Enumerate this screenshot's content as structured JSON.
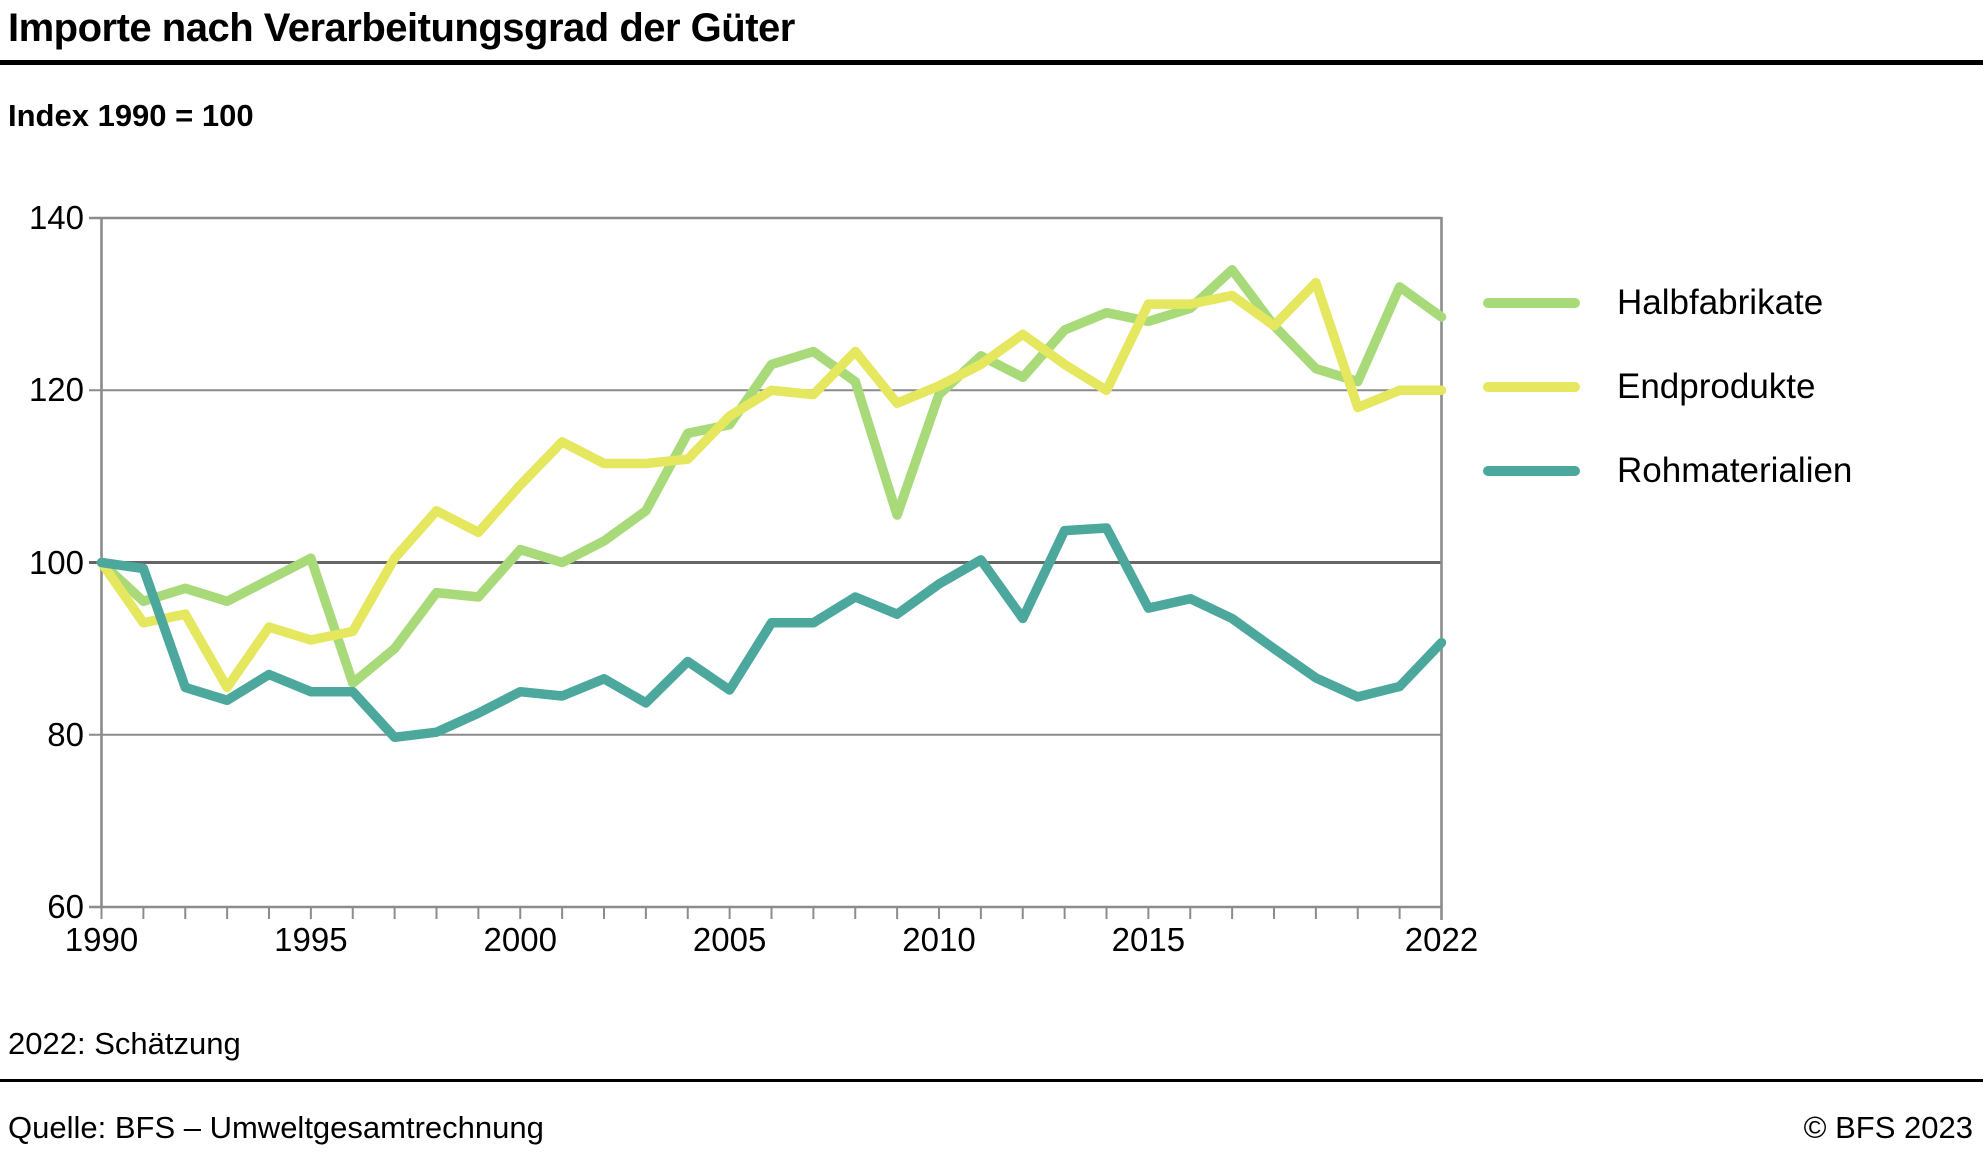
{
  "title": "Importe nach Verarbeitungsgrad der Güter",
  "subtitle": "Index 1990 = 100",
  "footnote": "2022: Schätzung",
  "source": "Quelle: BFS – Umweltgesamtrechnung",
  "copyright": "© BFS 2023",
  "colors": {
    "halbfabrikate": "#a9da79",
    "endprodukte": "#e5e75f",
    "rohmaterialien": "#4ca89c",
    "grid": "#8c8c8c",
    "grid_strong": "#666666",
    "text": "#000000"
  },
  "chart_data": {
    "type": "line",
    "title": "Importe nach Verarbeitungsgrad der Güter",
    "subtitle": "Index 1990 = 100",
    "xlabel": "",
    "ylabel": "Index 1990 = 100",
    "xlim": [
      1990,
      2022
    ],
    "ylim": [
      60,
      140
    ],
    "yticks": [
      140,
      120,
      100,
      80,
      60
    ],
    "xtick_labels": [
      1990,
      1995,
      2000,
      2005,
      2010,
      2015,
      2022
    ],
    "grid": "horizontal",
    "baseline_value": 100,
    "legend_position": "right",
    "x": [
      1990,
      1991,
      1992,
      1993,
      1994,
      1995,
      1996,
      1997,
      1998,
      1999,
      2000,
      2001,
      2002,
      2003,
      2004,
      2005,
      2006,
      2007,
      2008,
      2009,
      2010,
      2011,
      2012,
      2013,
      2014,
      2015,
      2016,
      2017,
      2018,
      2019,
      2020,
      2021,
      2022
    ],
    "series": [
      {
        "name": "Halbfabrikate",
        "color": "#a9da79",
        "values": [
          100,
          95.5,
          97,
          95.5,
          98,
          100.5,
          86,
          90,
          96.5,
          96,
          101.5,
          100,
          102.5,
          106,
          115,
          116,
          123,
          124.5,
          121,
          105.5,
          119.5,
          124,
          121.5,
          127,
          129,
          128,
          129.5,
          134,
          127.5,
          122.5,
          121,
          132,
          128.5
        ]
      },
      {
        "name": "Endprodukte",
        "color": "#e5e75f",
        "values": [
          100,
          93,
          94,
          85.5,
          92.5,
          91,
          92,
          100.5,
          106,
          103.5,
          109,
          114,
          111.5,
          111.5,
          112,
          117,
          120,
          119.5,
          124.5,
          118.5,
          120.5,
          123,
          126.5,
          123,
          120,
          130,
          130,
          131,
          127.5,
          132.5,
          118,
          120,
          120
        ]
      },
      {
        "name": "Rohmaterialien",
        "color": "#4ca89c",
        "values": [
          100,
          99.3,
          85.5,
          84,
          87,
          85,
          85,
          79.7,
          80.3,
          82.5,
          85,
          84.5,
          86.5,
          83.7,
          88.5,
          85.2,
          93,
          93,
          96,
          94,
          97.5,
          100.3,
          93.5,
          103.7,
          104,
          94.7,
          95.8,
          93.5,
          90,
          86.6,
          84.4,
          85.6,
          90.7
        ]
      }
    ]
  }
}
